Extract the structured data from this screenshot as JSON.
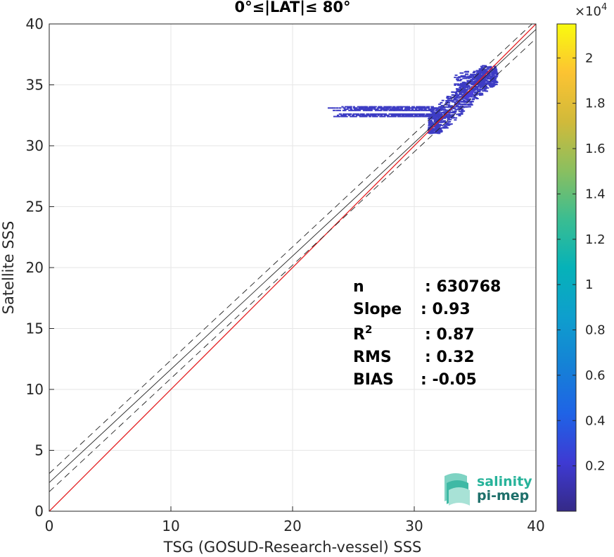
{
  "chart_data": {
    "type": "heatmap",
    "title": "0°≤|LAT|≤ 80°",
    "xlabel": "TSG (GOSUD-Research-vessel) SSS",
    "ylabel": "Satellite SSS",
    "xlim": [
      0,
      40
    ],
    "ylim": [
      0,
      40
    ],
    "xticks": [
      "0",
      "10",
      "20",
      "30",
      "40"
    ],
    "yticks": [
      "0",
      "5",
      "10",
      "15",
      "20",
      "25",
      "30",
      "35",
      "40"
    ],
    "grid": true,
    "lines": [
      {
        "name": "one-to-one",
        "color": "#e31a1c",
        "style": "solid",
        "slope": 1,
        "intercept": 0
      },
      {
        "name": "regression",
        "color": "#222222",
        "style": "solid",
        "slope": 0.93,
        "intercept": 2.35
      },
      {
        "name": "upper-bound",
        "color": "#222222",
        "style": "dashed",
        "slope": 0.93,
        "intercept": 3.1
      },
      {
        "name": "lower-bound",
        "color": "#222222",
        "style": "dashed",
        "slope": 0.93,
        "intercept": 1.6
      }
    ],
    "density_cloud": {
      "x_range": [
        22,
        37
      ],
      "y_range": [
        31,
        36.6
      ],
      "core": {
        "x": 34.5,
        "y": 34.2
      },
      "color": "#3d3cc4"
    },
    "colorbar": {
      "scale_label": "×10",
      "scale_exponent": "4",
      "range": [
        0,
        2.15
      ],
      "ticks": [
        "0.2",
        "0.4",
        "0.6",
        "0.8",
        "1",
        "1.2",
        "1.4",
        "1.6",
        "1.8",
        "2"
      ],
      "colormap": "parula"
    },
    "stats": [
      {
        "label": "n",
        "value": ": 630768"
      },
      {
        "label": "Slope",
        "value": ": 0.93"
      },
      {
        "label": "R",
        "sup": "2",
        "value": ": 0.87"
      },
      {
        "label": "RMS",
        "value": ": 0.32"
      },
      {
        "label": "BIAS",
        "value": ": -0.05"
      }
    ]
  },
  "logo": {
    "line1": "salinity",
    "line2": "pi-mep"
  }
}
